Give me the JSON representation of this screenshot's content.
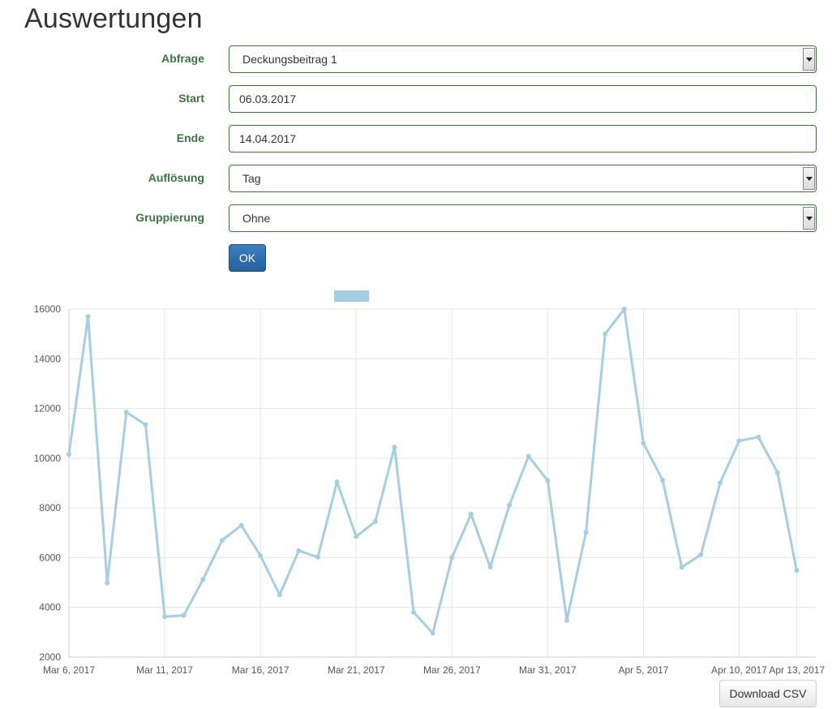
{
  "page": {
    "title": "Auswertungen"
  },
  "form": {
    "abfrage": {
      "label": "Abfrage",
      "value": "Deckungsbeitrag 1"
    },
    "start": {
      "label": "Start",
      "value": "06.03.2017"
    },
    "ende": {
      "label": "Ende",
      "value": "14.04.2017"
    },
    "aufloesung": {
      "label": "Auflösung",
      "value": "Tag"
    },
    "gruppierung": {
      "label": "Gruppierung",
      "value": "Ohne"
    },
    "ok_label": "OK"
  },
  "download_label": "Download CSV",
  "chart_data": {
    "type": "line",
    "title": "",
    "xlabel": "",
    "ylabel": "",
    "ylim": [
      2000,
      16000
    ],
    "yticks": [
      2000,
      4000,
      6000,
      8000,
      10000,
      12000,
      14000,
      16000
    ],
    "xlim": [
      "2017-03-06",
      "2017-04-14"
    ],
    "xticks": [
      {
        "date": "2017-03-06",
        "label": "Mar 6, 2017"
      },
      {
        "date": "2017-03-11",
        "label": "Mar 11, 2017"
      },
      {
        "date": "2017-03-16",
        "label": "Mar 16, 2017"
      },
      {
        "date": "2017-03-21",
        "label": "Mar 21, 2017"
      },
      {
        "date": "2017-03-26",
        "label": "Mar 26, 2017"
      },
      {
        "date": "2017-03-31",
        "label": "Mar 31, 2017"
      },
      {
        "date": "2017-04-05",
        "label": "Apr 5, 2017"
      },
      {
        "date": "2017-04-10",
        "label": "Apr 10, 2017"
      },
      {
        "date": "2017-04-13",
        "label": "Apr 13, 2017"
      }
    ],
    "grid": true,
    "legend": "top-center",
    "series": [
      {
        "color": "#a6cee3",
        "x": [
          "2017-03-06",
          "2017-03-07",
          "2017-03-08",
          "2017-03-09",
          "2017-03-10",
          "2017-03-11",
          "2017-03-12",
          "2017-03-13",
          "2017-03-14",
          "2017-03-15",
          "2017-03-16",
          "2017-03-17",
          "2017-03-18",
          "2017-03-19",
          "2017-03-20",
          "2017-03-21",
          "2017-03-22",
          "2017-03-23",
          "2017-03-24",
          "2017-03-25",
          "2017-03-26",
          "2017-03-27",
          "2017-03-28",
          "2017-03-29",
          "2017-03-30",
          "2017-03-31",
          "2017-04-01",
          "2017-04-02",
          "2017-04-03",
          "2017-04-04",
          "2017-04-05",
          "2017-04-06",
          "2017-04-07",
          "2017-04-08",
          "2017-04-09",
          "2017-04-10",
          "2017-04-11",
          "2017-04-12",
          "2017-04-13"
        ],
        "values": [
          10150,
          15700,
          4980,
          11850,
          11350,
          3620,
          3680,
          5120,
          6700,
          7300,
          6080,
          4500,
          6280,
          6020,
          9050,
          6850,
          7450,
          10450,
          3800,
          2960,
          6000,
          7750,
          5620,
          8120,
          10080,
          9100,
          3480,
          7020,
          15000,
          16000,
          10600,
          9120,
          5620,
          6120,
          9000,
          10700,
          10850,
          9420,
          5480
        ]
      }
    ]
  }
}
